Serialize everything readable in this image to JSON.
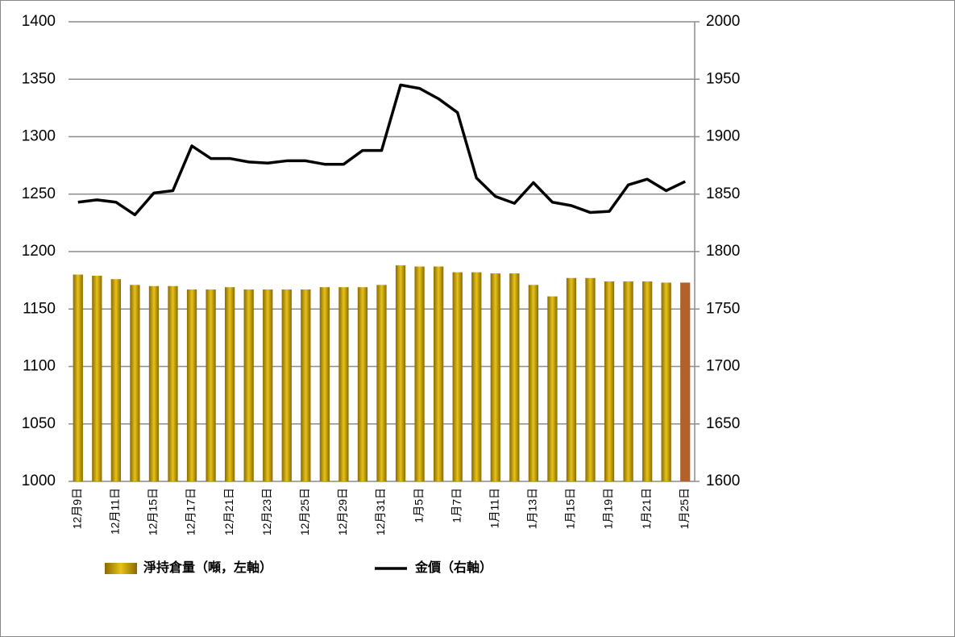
{
  "chart_data": {
    "type": "bar-line",
    "categories": [
      "12月9日",
      null,
      "12月11日",
      null,
      "12月15日",
      null,
      "12月17日",
      null,
      "12月21日",
      null,
      "12月23日",
      null,
      "12月25日",
      null,
      "12月29日",
      null,
      "12月31日",
      null,
      "1月5日",
      null,
      "1月7日",
      null,
      "1月11日",
      null,
      "1月13日",
      null,
      "1月15日",
      null,
      "1月19日",
      null,
      "1月21日",
      null,
      "1月25日"
    ],
    "series": [
      {
        "name": "淨持倉量（噸，左軸）",
        "type": "bar",
        "color": "#c9a200",
        "highlight_last_color": "#b0622a",
        "values": [
          1180,
          1179,
          1176,
          1171,
          1170,
          1170,
          1167,
          1167,
          1169,
          1167,
          1167,
          1167,
          1167,
          1169,
          1169,
          1169,
          1171,
          1188,
          1187,
          1187,
          1182,
          1182,
          1181,
          1181,
          1171,
          1161,
          1177,
          1177,
          1174,
          1174,
          1174,
          1173,
          1173
        ]
      },
      {
        "name": "金價（右軸）",
        "type": "line",
        "axis": "y2",
        "color": "#000000",
        "values": [
          1843,
          1845,
          1843,
          1832,
          1851,
          1853,
          1892,
          1881,
          1881,
          1878,
          1877,
          1879,
          1879,
          1876,
          1876,
          1888,
          1888,
          1945,
          1942,
          1933,
          1921,
          1864,
          1848,
          1842,
          1860,
          1843,
          1840,
          1834,
          1835,
          1858,
          1863,
          1853,
          1861
        ]
      }
    ],
    "ylim": [
      1000,
      1400
    ],
    "yticks": [
      1000,
      1050,
      1100,
      1150,
      1200,
      1250,
      1300,
      1350,
      1400
    ],
    "y2lim": [
      1600,
      2000
    ],
    "y2ticks": [
      1600,
      1650,
      1700,
      1750,
      1800,
      1850,
      1900,
      1950,
      2000
    ],
    "grid": true,
    "legend": "bottom"
  }
}
